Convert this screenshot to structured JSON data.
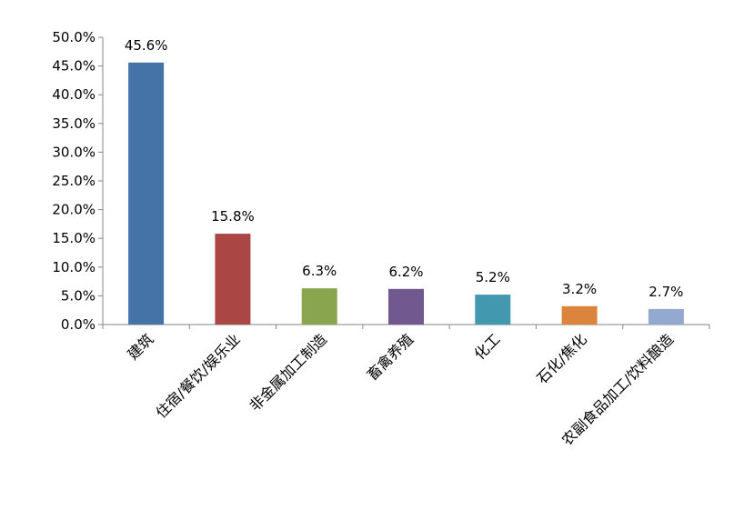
{
  "chart_data": {
    "type": "bar",
    "categories": [
      "建筑",
      "住宿/餐饮/娱乐业",
      "非金属加工制造",
      "畜禽养殖",
      "化工",
      "石化/焦化",
      "农副食品加工/饮料酿造"
    ],
    "values": [
      45.6,
      15.8,
      6.3,
      6.2,
      5.2,
      3.2,
      2.7
    ],
    "data_labels": [
      "45.6%",
      "15.8%",
      "6.3%",
      "6.2%",
      "5.2%",
      "3.2%",
      "2.7%"
    ],
    "colors": [
      "#4572A7",
      "#AA4643",
      "#89A54E",
      "#71588F",
      "#4198AF",
      "#DB843D",
      "#93A9CF"
    ],
    "y_ticks": [
      "0.0%",
      "5.0%",
      "10.0%",
      "15.0%",
      "20.0%",
      "25.0%",
      "30.0%",
      "35.0%",
      "40.0%",
      "45.0%",
      "50.0%"
    ],
    "ylim": [
      0,
      50
    ],
    "title": "",
    "xlabel": "",
    "ylabel": "",
    "grid": false,
    "legend": "none"
  }
}
